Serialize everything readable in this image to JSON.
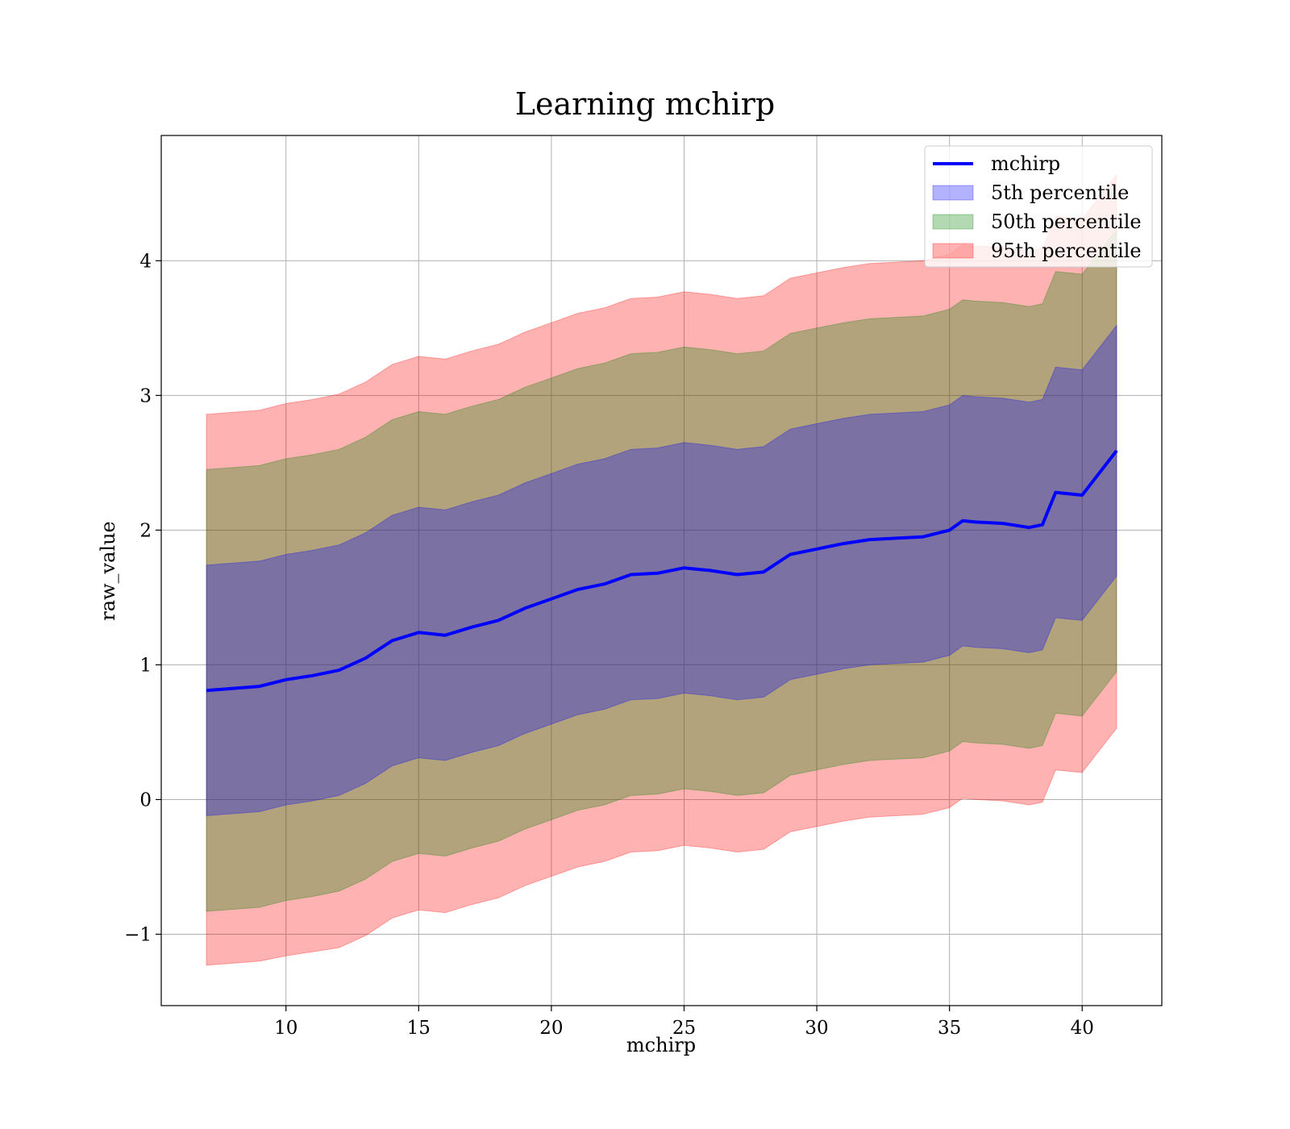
{
  "chart_data": {
    "type": "area",
    "title": "Learning mchirp",
    "xlabel": "mchirp",
    "ylabel": "raw_value",
    "xlim": [
      5.3,
      43.0
    ],
    "ylim": [
      -1.53,
      4.93
    ],
    "xticks": [
      10,
      15,
      20,
      25,
      30,
      35,
      40
    ],
    "yticks": [
      -1,
      0,
      1,
      2,
      3,
      4
    ],
    "xtick_labels": [
      "10",
      "15",
      "20",
      "25",
      "30",
      "35",
      "40"
    ],
    "ytick_labels": [
      "−1",
      "0",
      "1",
      "2",
      "3",
      "4"
    ],
    "grid": true,
    "legend_position": "top-right",
    "x": [
      7,
      9,
      10,
      11,
      12,
      13,
      14,
      15,
      16,
      17,
      18,
      19,
      20,
      21,
      22,
      23,
      24,
      25,
      26,
      27,
      28,
      29,
      30,
      31,
      32,
      33,
      34,
      35,
      35.5,
      36,
      37,
      38,
      38.5,
      39,
      40,
      41.3
    ],
    "mean_line": {
      "name": "mchirp",
      "color": "#0000ff",
      "values": [
        0.81,
        0.84,
        0.89,
        0.92,
        0.96,
        1.05,
        1.18,
        1.24,
        1.22,
        1.28,
        1.33,
        1.42,
        1.49,
        1.56,
        1.6,
        1.67,
        1.68,
        1.72,
        1.7,
        1.67,
        1.69,
        1.82,
        1.86,
        1.9,
        1.93,
        1.94,
        1.95,
        2.0,
        2.07,
        2.06,
        2.05,
        2.02,
        2.04,
        2.28,
        2.26,
        2.59
      ]
    },
    "bands": [
      {
        "name": "95th percentile",
        "color": "#ff0000",
        "opacity": 0.3,
        "lower": [
          -1.23,
          -1.2,
          -1.16,
          -1.13,
          -1.1,
          -1.01,
          -0.88,
          -0.82,
          -0.84,
          -0.78,
          -0.73,
          -0.64,
          -0.57,
          -0.5,
          -0.46,
          -0.39,
          -0.38,
          -0.34,
          -0.36,
          -0.39,
          -0.37,
          -0.24,
          -0.2,
          -0.16,
          -0.13,
          -0.12,
          -0.11,
          -0.06,
          0.01,
          0.0,
          -0.01,
          -0.04,
          -0.02,
          0.22,
          0.2,
          0.53
        ],
        "upper": [
          2.86,
          2.89,
          2.94,
          2.97,
          3.01,
          3.1,
          3.23,
          3.29,
          3.27,
          3.33,
          3.38,
          3.47,
          3.54,
          3.61,
          3.65,
          3.72,
          3.73,
          3.77,
          3.75,
          3.72,
          3.74,
          3.87,
          3.91,
          3.95,
          3.98,
          3.99,
          4.0,
          4.05,
          4.12,
          4.11,
          4.1,
          4.07,
          4.09,
          4.33,
          4.31,
          4.64
        ]
      },
      {
        "name": "50th percentile",
        "color": "#008000",
        "opacity": 0.3,
        "lower": [
          -0.83,
          -0.8,
          -0.75,
          -0.72,
          -0.68,
          -0.59,
          -0.46,
          -0.4,
          -0.42,
          -0.36,
          -0.31,
          -0.22,
          -0.15,
          -0.08,
          -0.04,
          0.03,
          0.04,
          0.08,
          0.06,
          0.03,
          0.05,
          0.18,
          0.22,
          0.26,
          0.29,
          0.3,
          0.31,
          0.36,
          0.43,
          0.42,
          0.41,
          0.38,
          0.4,
          0.64,
          0.62,
          0.95
        ],
        "upper": [
          2.45,
          2.48,
          2.53,
          2.56,
          2.6,
          2.69,
          2.82,
          2.88,
          2.86,
          2.92,
          2.97,
          3.06,
          3.13,
          3.2,
          3.24,
          3.31,
          3.32,
          3.36,
          3.34,
          3.31,
          3.33,
          3.46,
          3.5,
          3.54,
          3.57,
          3.58,
          3.59,
          3.64,
          3.71,
          3.7,
          3.69,
          3.66,
          3.68,
          3.92,
          3.9,
          4.23
        ]
      },
      {
        "name": "5th percentile",
        "color": "#0000ff",
        "opacity": 0.3,
        "lower": [
          -0.12,
          -0.09,
          -0.04,
          -0.01,
          0.03,
          0.12,
          0.25,
          0.31,
          0.29,
          0.35,
          0.4,
          0.49,
          0.56,
          0.63,
          0.67,
          0.74,
          0.75,
          0.79,
          0.77,
          0.74,
          0.76,
          0.89,
          0.93,
          0.97,
          1.0,
          1.01,
          1.02,
          1.07,
          1.14,
          1.13,
          1.12,
          1.09,
          1.11,
          1.35,
          1.33,
          1.66
        ],
        "upper": [
          1.74,
          1.77,
          1.82,
          1.85,
          1.89,
          1.98,
          2.11,
          2.17,
          2.15,
          2.21,
          2.26,
          2.35,
          2.42,
          2.49,
          2.53,
          2.6,
          2.61,
          2.65,
          2.63,
          2.6,
          2.62,
          2.75,
          2.79,
          2.83,
          2.86,
          2.87,
          2.88,
          2.93,
          3.0,
          2.99,
          2.98,
          2.95,
          2.97,
          3.21,
          3.19,
          3.52
        ]
      }
    ],
    "legend": [
      {
        "label": "mchirp",
        "kind": "line",
        "color": "#0000ff"
      },
      {
        "label": "5th percentile",
        "kind": "patch",
        "color": "#0000ff"
      },
      {
        "label": "50th percentile",
        "kind": "patch",
        "color": "#008000"
      },
      {
        "label": "95th percentile",
        "kind": "patch",
        "color": "#ff0000"
      }
    ]
  }
}
